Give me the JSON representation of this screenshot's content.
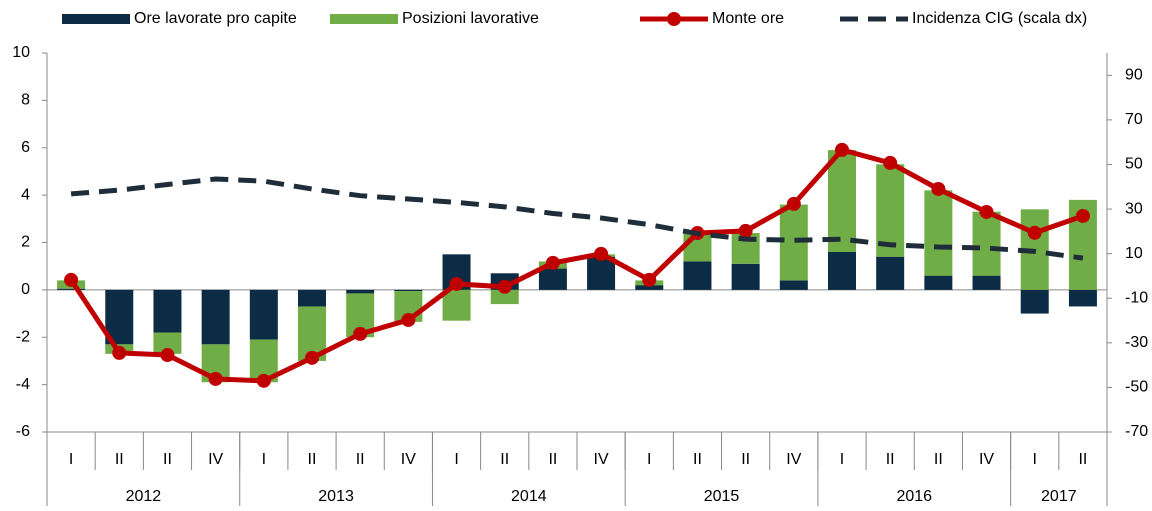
{
  "chart_data": {
    "type": "combo",
    "categories": [
      "I",
      "II",
      "II",
      "IV",
      "I",
      "II",
      "II",
      "IV",
      "I",
      "II",
      "II",
      "IV",
      "I",
      "II",
      "II",
      "IV",
      "I",
      "II",
      "II",
      "IV",
      "I",
      "II"
    ],
    "years": [
      "2012",
      "2013",
      "2014",
      "2015",
      "2016",
      "2017"
    ],
    "series": [
      {
        "name": "Ore lavorate pro capite",
        "type": "bar",
        "color": "#0c2b44",
        "values": [
          0.05,
          -2.3,
          -1.8,
          -2.3,
          -2.1,
          -0.7,
          -0.15,
          -0.05,
          1.5,
          0.7,
          0.9,
          1.4,
          0.2,
          1.2,
          1.1,
          0.4,
          1.6,
          1.4,
          0.6,
          0.6,
          -1.0,
          -0.7
        ]
      },
      {
        "name": "Posizioni lavorative",
        "type": "bar",
        "color": "#70ad47",
        "values": [
          0.35,
          -0.4,
          -0.9,
          -1.6,
          -1.8,
          -2.3,
          -1.85,
          -1.3,
          -1.3,
          -0.6,
          0.3,
          0.1,
          0.2,
          1.2,
          1.3,
          3.2,
          4.3,
          3.9,
          3.6,
          2.7,
          3.4,
          3.8
        ]
      },
      {
        "name": "Monte ore",
        "type": "line",
        "color": "#c00000",
        "values": [
          0.42,
          -2.66,
          -2.75,
          -3.76,
          -3.84,
          -2.87,
          -1.86,
          -1.27,
          0.25,
          0.13,
          1.14,
          1.52,
          0.42,
          2.4,
          2.49,
          3.63,
          5.91,
          5.36,
          4.26,
          3.29,
          2.41,
          3.12
        ]
      },
      {
        "name": "Incidenza CIG (scala dx)",
        "type": "dashed",
        "axis": "y2",
        "color": "#1f2d3b",
        "values": [
          36.8,
          38.5,
          41,
          43.5,
          42.5,
          39,
          36,
          34.5,
          33,
          31,
          28,
          26,
          23,
          19,
          16.5,
          16,
          16.5,
          14,
          13,
          12.5,
          11,
          8
        ]
      }
    ],
    "ylim": [
      -6,
      10
    ],
    "yticks": [
      -6,
      -4,
      -2,
      0,
      2,
      4,
      6,
      8,
      10
    ],
    "y2lim": [
      -70,
      100
    ],
    "y2ticks": [
      -70,
      -50,
      -30,
      -10,
      10,
      30,
      50,
      70,
      90
    ]
  }
}
